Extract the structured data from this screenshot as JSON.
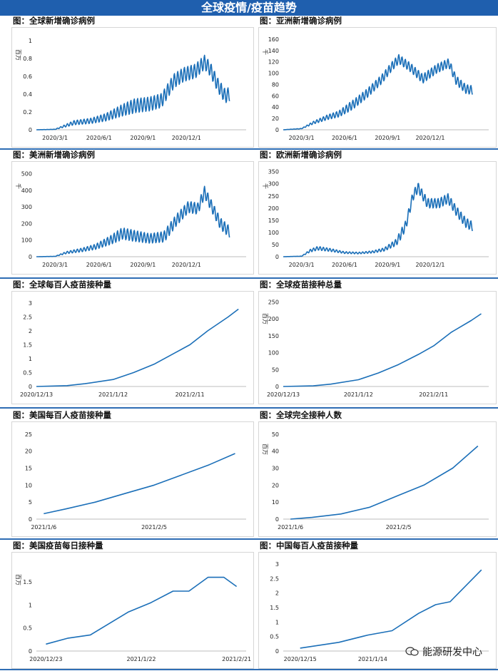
{
  "page": {
    "title": "全球疫情/疫苗趋势",
    "watermark": "能源研发中心"
  },
  "colors": {
    "banner": "#1f5fae",
    "line": "#1b6fb8",
    "separator": "#2e6db4"
  },
  "chart_data": [
    {
      "id": "global-new-cases",
      "type": "line",
      "title": "图：全球新增确诊病例",
      "ylabel": "百万",
      "ylim": [
        0,
        1.05
      ],
      "yticks": [
        0,
        0.2,
        0.4,
        0.6,
        0.8,
        1
      ],
      "xlim": [
        "2020-01-22",
        "2021-04-05"
      ],
      "xticks": [
        [
          "2020-03-01",
          "2020/3/1"
        ],
        [
          "2020-06-01",
          "2020/6/1"
        ],
        [
          "2020-09-01",
          "2020/9/1"
        ],
        [
          "2020-12-01",
          "2020/12/1"
        ]
      ],
      "weekly_amplitude": 0.08,
      "x": [
        "2020-01-22",
        "2020-03-01",
        "2020-03-20",
        "2020-04-10",
        "2020-05-15",
        "2020-06-15",
        "2020-07-20",
        "2020-08-15",
        "2020-09-15",
        "2020-10-10",
        "2020-11-05",
        "2020-11-25",
        "2020-12-20",
        "2021-01-08",
        "2021-01-20",
        "2021-02-05",
        "2021-02-20",
        "2021-03-01"
      ],
      "y": [
        0.0,
        0.005,
        0.04,
        0.08,
        0.1,
        0.14,
        0.22,
        0.27,
        0.29,
        0.33,
        0.55,
        0.62,
        0.66,
        0.76,
        0.68,
        0.5,
        0.38,
        0.4
      ]
    },
    {
      "id": "asia-new-cases",
      "type": "line",
      "title": "图：亚洲新增确诊病例",
      "ylabel": "千",
      "ylim": [
        0,
        165
      ],
      "yticks": [
        0,
        20,
        40,
        60,
        80,
        100,
        120,
        140,
        160
      ],
      "xlim": [
        "2020-01-22",
        "2021-04-05"
      ],
      "xticks": [
        [
          "2020-03-01",
          "2020/3/1"
        ],
        [
          "2020-06-01",
          "2020/6/1"
        ],
        [
          "2020-09-01",
          "2020/9/1"
        ],
        [
          "2020-12-01",
          "2020/12/1"
        ]
      ],
      "weekly_amplitude": 8,
      "x": [
        "2020-01-22",
        "2020-03-01",
        "2020-03-25",
        "2020-04-25",
        "2020-05-20",
        "2020-06-20",
        "2020-07-20",
        "2020-08-20",
        "2020-09-10",
        "2020-09-25",
        "2020-10-20",
        "2020-11-15",
        "2020-12-15",
        "2021-01-10",
        "2021-01-25",
        "2021-02-15",
        "2021-03-01"
      ],
      "y": [
        0,
        2,
        12,
        22,
        28,
        45,
        65,
        90,
        112,
        125,
        110,
        90,
        108,
        118,
        88,
        72,
        70
      ]
    },
    {
      "id": "americas-new-cases",
      "type": "line",
      "title": "图：美洲新增确诊病例",
      "ylabel": "千",
      "ylim": [
        0,
        520
      ],
      "yticks": [
        0,
        100,
        200,
        300,
        400,
        500
      ],
      "xlim": [
        "2020-01-22",
        "2021-04-05"
      ],
      "xticks": [
        [
          "2020-03-01",
          "2020/3/1"
        ],
        [
          "2020-06-01",
          "2020/6/1"
        ],
        [
          "2020-09-01",
          "2020/9/1"
        ],
        [
          "2020-12-01",
          "2020/12/1"
        ]
      ],
      "weekly_amplitude": 35,
      "x": [
        "2020-01-22",
        "2020-03-01",
        "2020-03-25",
        "2020-04-25",
        "2020-05-25",
        "2020-06-25",
        "2020-07-20",
        "2020-08-15",
        "2020-09-15",
        "2020-10-15",
        "2020-11-10",
        "2020-12-05",
        "2020-12-25",
        "2021-01-08",
        "2021-01-20",
        "2021-02-10",
        "2021-03-01"
      ],
      "y": [
        0,
        2,
        25,
        40,
        60,
        100,
        140,
        125,
        110,
        120,
        220,
        300,
        290,
        390,
        320,
        200,
        150
      ]
    },
    {
      "id": "europe-new-cases",
      "type": "line",
      "title": "图：欧洲新增确诊病例",
      "ylabel": "千",
      "ylim": [
        0,
        355
      ],
      "yticks": [
        0,
        50,
        100,
        150,
        200,
        250,
        300,
        350
      ],
      "xlim": [
        "2020-01-22",
        "2021-04-05"
      ],
      "xticks": [
        [
          "2020-03-01",
          "2020/3/1"
        ],
        [
          "2020-06-01",
          "2020/6/1"
        ],
        [
          "2020-09-01",
          "2020/9/1"
        ],
        [
          "2020-12-01",
          "2020/12/1"
        ]
      ],
      "weekly_amplitude": 20,
      "x": [
        "2020-01-22",
        "2020-03-01",
        "2020-03-20",
        "2020-04-05",
        "2020-05-01",
        "2020-06-01",
        "2020-07-01",
        "2020-08-01",
        "2020-08-25",
        "2020-09-20",
        "2020-10-10",
        "2020-10-25",
        "2020-11-05",
        "2020-11-25",
        "2020-12-20",
        "2021-01-08",
        "2021-01-25",
        "2021-02-15",
        "2021-03-01"
      ],
      "y": [
        0,
        2,
        25,
        35,
        28,
        17,
        15,
        20,
        30,
        60,
        130,
        250,
        285,
        220,
        220,
        240,
        190,
        140,
        125
      ]
    },
    {
      "id": "global-doses-per-100",
      "type": "line",
      "title": "图：全球每百人疫苗接种量",
      "ylabel": "",
      "ylim": [
        0,
        3.1
      ],
      "yticks": [
        0,
        0.5,
        1,
        1.5,
        2,
        2.5,
        3
      ],
      "xlim": [
        "2020-12-13",
        "2021-03-05"
      ],
      "xticks": [
        [
          "2020-12-13",
          "2020/12/13"
        ],
        [
          "2021-01-12",
          "2021/1/12"
        ],
        [
          "2021-02-11",
          "2021/2/11"
        ]
      ],
      "weekly_amplitude": 0,
      "x": [
        "2020-12-13",
        "2020-12-25",
        "2021-01-01",
        "2021-01-12",
        "2021-01-20",
        "2021-01-28",
        "2021-02-05",
        "2021-02-11",
        "2021-02-18",
        "2021-02-26",
        "2021-03-02"
      ],
      "y": [
        0,
        0.03,
        0.1,
        0.25,
        0.5,
        0.8,
        1.2,
        1.5,
        2.0,
        2.5,
        2.78
      ]
    },
    {
      "id": "global-total-doses",
      "type": "line",
      "title": "图：全球疫苗接种总量",
      "ylabel": "百万",
      "ylim": [
        0,
        255
      ],
      "yticks": [
        0,
        50,
        100,
        150,
        200,
        250
      ],
      "xlim": [
        "2020-12-13",
        "2021-03-05"
      ],
      "xticks": [
        [
          "2020-12-13",
          "2020/12/13"
        ],
        [
          "2021-01-12",
          "2021/1/12"
        ],
        [
          "2021-02-11",
          "2021/2/11"
        ]
      ],
      "weekly_amplitude": 0,
      "x": [
        "2020-12-13",
        "2020-12-25",
        "2021-01-01",
        "2021-01-12",
        "2021-01-20",
        "2021-01-28",
        "2021-02-05",
        "2021-02-11",
        "2021-02-18",
        "2021-02-26",
        "2021-03-02"
      ],
      "y": [
        0,
        2,
        7,
        20,
        40,
        65,
        95,
        120,
        160,
        195,
        215
      ]
    },
    {
      "id": "us-doses-per-100",
      "type": "line",
      "title": "图：美国每百人疫苗接种量",
      "ylabel": "",
      "ylim": [
        0,
        26
      ],
      "yticks": [
        0,
        5,
        10,
        15,
        20,
        25
      ],
      "xlim": [
        "2021-01-04",
        "2021-03-02"
      ],
      "xticks": [
        [
          "2021-01-06",
          "2021/1/6"
        ],
        [
          "2021-02-05",
          "2021/2/5"
        ]
      ],
      "weekly_amplitude": 0,
      "x": [
        "2021-01-06",
        "2021-01-12",
        "2021-01-20",
        "2021-01-28",
        "2021-02-05",
        "2021-02-12",
        "2021-02-20",
        "2021-02-27"
      ],
      "y": [
        1.6,
        3.0,
        5.0,
        7.5,
        10.0,
        12.8,
        16.0,
        19.3
      ]
    },
    {
      "id": "global-fully-vaccinated",
      "type": "line",
      "title": "图：全球完全接种人数",
      "ylabel": "百万",
      "ylim": [
        0,
        52
      ],
      "yticks": [
        0,
        10,
        20,
        30,
        40,
        50
      ],
      "xlim": [
        "2021-01-04",
        "2021-03-02"
      ],
      "xticks": [
        [
          "2021-01-06",
          "2021/1/6"
        ],
        [
          "2021-02-05",
          "2021/2/5"
        ]
      ],
      "weekly_amplitude": 0,
      "x": [
        "2021-01-06",
        "2021-01-12",
        "2021-01-20",
        "2021-01-28",
        "2021-02-05",
        "2021-02-12",
        "2021-02-20",
        "2021-02-27"
      ],
      "y": [
        0,
        1,
        3,
        7,
        14,
        20,
        30,
        43
      ]
    },
    {
      "id": "us-daily-doses",
      "type": "line",
      "title": "图：美国疫苗每日接种量",
      "ylabel": "百万",
      "ylim": [
        0,
        1.95
      ],
      "yticks": [
        0,
        0.5,
        1,
        1.5
      ],
      "xlim": [
        "2020-12-20",
        "2021-02-24"
      ],
      "xticks": [
        [
          "2020-12-23",
          "2020/12/23"
        ],
        [
          "2021-01-22",
          "2021/1/22"
        ],
        [
          "2021-02-21",
          "2021/2/21"
        ]
      ],
      "weekly_amplitude": 0,
      "x": [
        "2020-12-23",
        "2020-12-30",
        "2021-01-06",
        "2021-01-12",
        "2021-01-18",
        "2021-01-25",
        "2021-02-01",
        "2021-02-06",
        "2021-02-12",
        "2021-02-17",
        "2021-02-21"
      ],
      "y": [
        0.15,
        0.28,
        0.35,
        0.6,
        0.85,
        1.05,
        1.3,
        1.3,
        1.6,
        1.6,
        1.4
      ]
    },
    {
      "id": "china-doses-per-100",
      "type": "line",
      "title": "图：中国每百人疫苗接种量",
      "ylabel": "",
      "ylim": [
        0,
        3.1
      ],
      "yticks": [
        0,
        0.5,
        1,
        1.5,
        2,
        2.5,
        3
      ],
      "xlim": [
        "2020-12-08",
        "2021-03-03"
      ],
      "xticks": [
        [
          "2020-12-15",
          "2020/12/15"
        ],
        [
          "2021-01-14",
          "2021/1/14"
        ]
      ],
      "weekly_amplitude": 0,
      "x": [
        "2020-12-15",
        "2020-12-31",
        "2021-01-12",
        "2021-01-22",
        "2021-02-02",
        "2021-02-09",
        "2021-02-15",
        "2021-02-28"
      ],
      "y": [
        0.1,
        0.3,
        0.55,
        0.7,
        1.3,
        1.6,
        1.7,
        2.8
      ]
    }
  ]
}
